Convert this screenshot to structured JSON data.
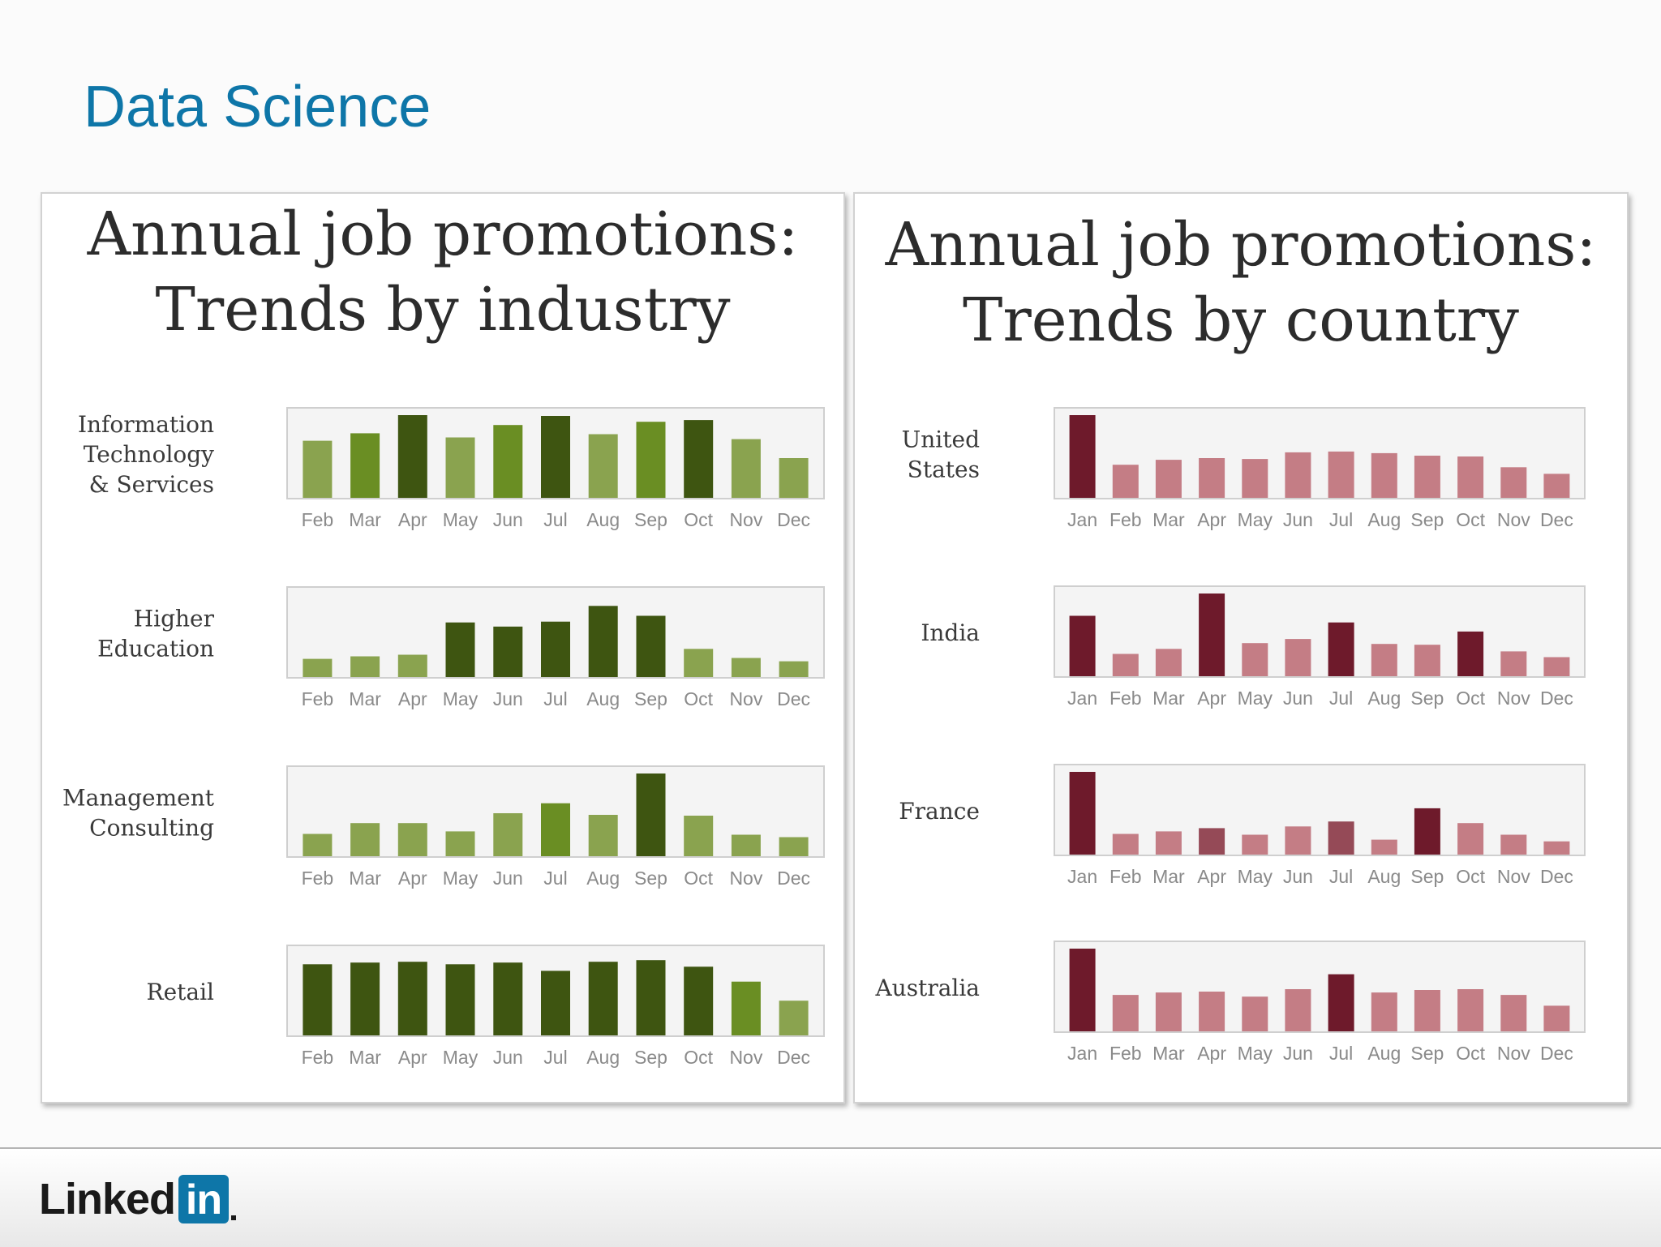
{
  "slide_title": "Data Science",
  "panels": [
    {
      "title_line1": "Annual job promotions:",
      "title_line2": "Trends by industry"
    },
    {
      "title_line1": "Annual job promotions:",
      "title_line2": "Trends by country"
    }
  ],
  "footer": {
    "logo_word": "Linked",
    "logo_box": "in"
  },
  "chart_data": [
    {
      "type": "bar",
      "title": "Annual job promotions: Trends by industry",
      "categories": [
        "Feb",
        "Mar",
        "Apr",
        "May",
        "Jun",
        "Jul",
        "Aug",
        "Sep",
        "Oct",
        "Nov",
        "Dec"
      ],
      "bar_shades": [
        "#8aa34f",
        "#6a8e23",
        "#3e5511"
      ],
      "series": [
        {
          "name": "Information Technology & Services",
          "label_lines": [
            "Information",
            "Technology",
            "& Services"
          ],
          "values": [
            69,
            78,
            100,
            73,
            88,
            99,
            77,
            92,
            94,
            71,
            48
          ],
          "shade": [
            1,
            2,
            3,
            1,
            2,
            3,
            1,
            2,
            3,
            1,
            1
          ]
        },
        {
          "name": "Higher Education",
          "label_lines": [
            "Higher",
            "Education"
          ],
          "values": [
            22,
            25,
            27,
            66,
            61,
            67,
            86,
            74,
            34,
            23,
            19
          ],
          "shade": [
            1,
            1,
            1,
            3,
            3,
            3,
            3,
            3,
            1,
            1,
            1
          ]
        },
        {
          "name": "Management Consulting",
          "label_lines": [
            "Management",
            "Consulting"
          ],
          "values": [
            27,
            40,
            40,
            30,
            52,
            64,
            50,
            100,
            49,
            26,
            23
          ],
          "shade": [
            1,
            1,
            1,
            1,
            1,
            2,
            1,
            3,
            1,
            1,
            1
          ]
        },
        {
          "name": "Retail",
          "label_lines": [
            "Retail"
          ],
          "values": [
            86,
            88,
            89,
            86,
            88,
            78,
            89,
            91,
            83,
            65,
            42
          ],
          "shade": [
            3,
            3,
            3,
            3,
            3,
            3,
            3,
            3,
            3,
            2,
            1
          ]
        }
      ]
    },
    {
      "type": "bar",
      "title": "Annual job promotions: Trends by country",
      "categories": [
        "Jan",
        "Feb",
        "Mar",
        "Apr",
        "May",
        "Jun",
        "Jul",
        "Aug",
        "Sep",
        "Oct",
        "Nov",
        "Dec"
      ],
      "bar_shades": [
        "#c47d85",
        "#954a57",
        "#6e1a2b"
      ],
      "series": [
        {
          "name": "United States",
          "label_lines": [
            "United",
            "States"
          ],
          "values": [
            100,
            40,
            46,
            48,
            47,
            55,
            56,
            54,
            51,
            50,
            37,
            29
          ],
          "shade": [
            3,
            1,
            1,
            1,
            1,
            1,
            1,
            1,
            1,
            1,
            1,
            1
          ]
        },
        {
          "name": "India",
          "label_lines": [
            "India"
          ],
          "values": [
            73,
            27,
            33,
            100,
            40,
            45,
            65,
            39,
            38,
            54,
            30,
            23
          ],
          "shade": [
            3,
            1,
            1,
            3,
            1,
            1,
            3,
            1,
            1,
            3,
            1,
            1
          ]
        },
        {
          "name": "France",
          "label_lines": [
            "France"
          ],
          "values": [
            100,
            25,
            28,
            32,
            24,
            34,
            40,
            18,
            56,
            38,
            24,
            16
          ],
          "shade": [
            3,
            1,
            1,
            2,
            1,
            1,
            2,
            1,
            3,
            1,
            1,
            1
          ]
        },
        {
          "name": "Australia",
          "label_lines": [
            "Australia"
          ],
          "values": [
            100,
            44,
            47,
            48,
            42,
            51,
            69,
            47,
            50,
            51,
            44,
            31
          ],
          "shade": [
            3,
            1,
            1,
            1,
            1,
            1,
            3,
            1,
            1,
            1,
            1,
            1
          ]
        }
      ]
    }
  ]
}
